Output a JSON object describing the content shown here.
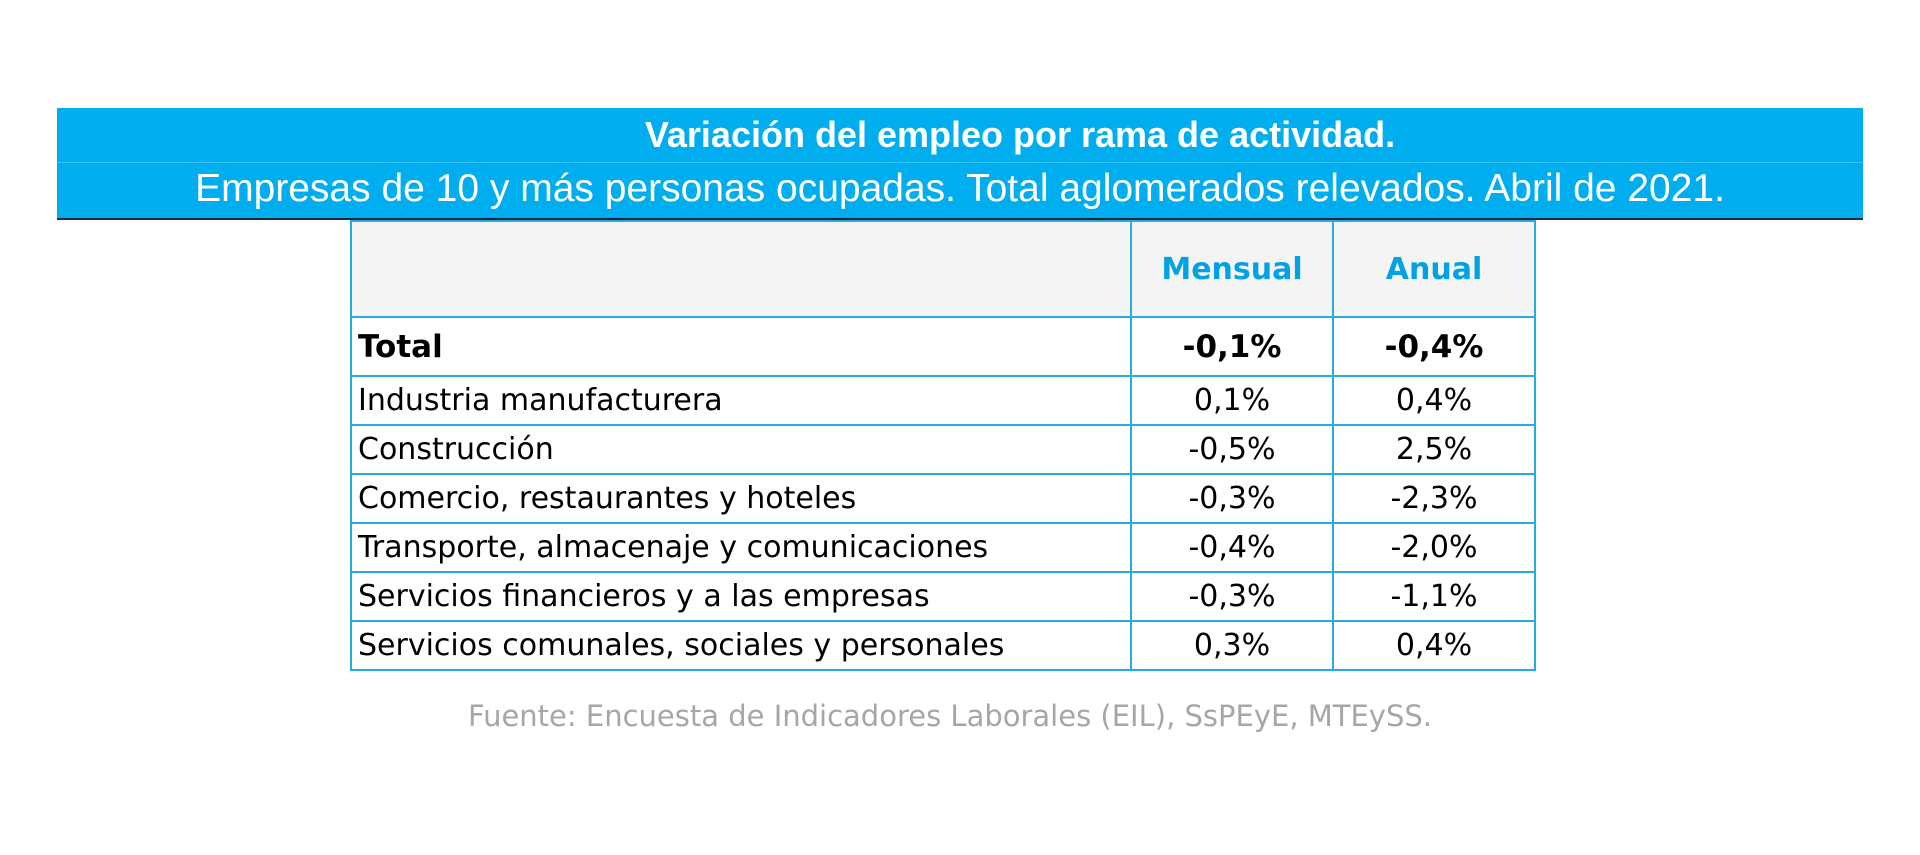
{
  "chart_data": {
    "type": "table",
    "title": "Variación del empleo por rama de actividad.",
    "subtitle": "Empresas de 10 y más personas ocupadas. Total aglomerados relevados. Abril de 2021.",
    "columns": [
      "",
      "Mensual",
      "Anual"
    ],
    "total": {
      "label": "Total",
      "mensual": "-0,1%",
      "anual": "-0,4%"
    },
    "rows": [
      {
        "label": "Industria manufacturera",
        "mensual": "0,1%",
        "anual": "0,4%"
      },
      {
        "label": "Construcción",
        "mensual": "-0,5%",
        "anual": "2,5%"
      },
      {
        "label": "Comercio, restaurantes y hoteles",
        "mensual": "-0,3%",
        "anual": "-2,3%"
      },
      {
        "label": "Transporte, almacenaje y comunicaciones",
        "mensual": "-0,4%",
        "anual": "-2,0%"
      },
      {
        "label": "Servicios financieros y a las empresas",
        "mensual": "-0,3%",
        "anual": "-1,1%"
      },
      {
        "label": "Servicios comunales, sociales y personales",
        "mensual": "0,3%",
        "anual": "0,4%"
      }
    ],
    "source": "Fuente: Encuesta de Indicadores Laborales (EIL), SsPEyE, MTEySS."
  },
  "colors": {
    "banner": "#00aeef",
    "header_text": "#00a2e3",
    "border": "#29abe2",
    "source_text": "#a6a6a6"
  }
}
